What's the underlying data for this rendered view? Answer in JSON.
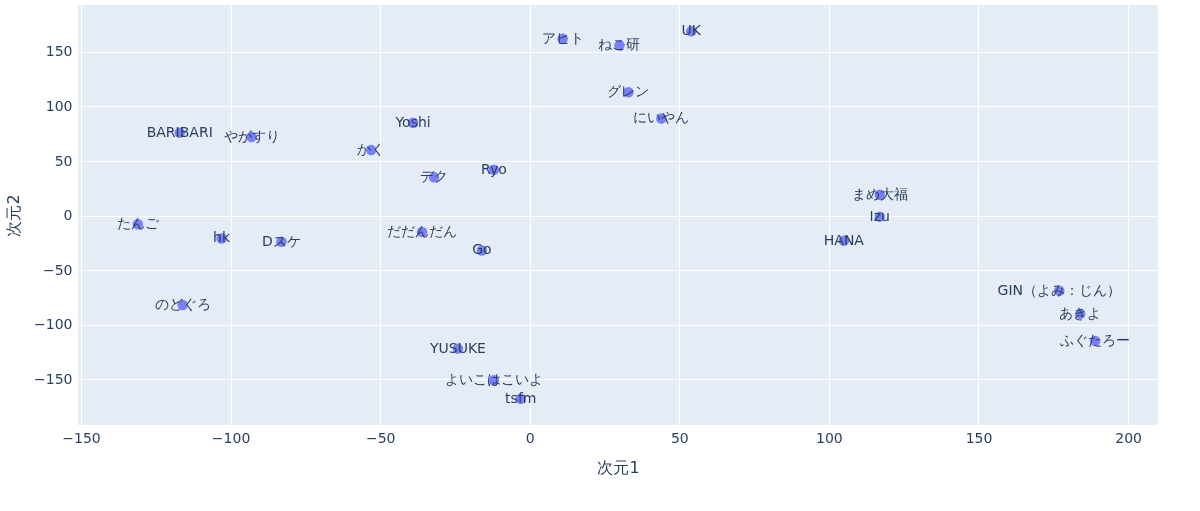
{
  "chart_data": {
    "type": "scatter",
    "xlabel": "次元1",
    "ylabel": "次元2",
    "xlim": [
      -151,
      210
    ],
    "ylim": [
      -192,
      193
    ],
    "xticks": [
      -150,
      -100,
      -50,
      0,
      50,
      100,
      150,
      200
    ],
    "yticks": [
      -150,
      -100,
      -50,
      0,
      50,
      100,
      150
    ],
    "grid": true,
    "marker": "circle",
    "series": [
      {
        "color": "#636efa",
        "x": [
          11,
          -117,
          -93,
          -53,
          -39,
          -32,
          -12,
          -131,
          -36,
          -103,
          -83,
          -16,
          -116,
          -24,
          -12,
          -3,
          54,
          30,
          33,
          44,
          117,
          117,
          105,
          177,
          184,
          189
        ],
        "values": [
          162,
          76,
          72,
          60,
          85,
          35,
          42,
          -8,
          -15,
          -21,
          -24,
          -32,
          -82,
          -122,
          -151,
          -168,
          169,
          156,
          113,
          89,
          19,
          -1,
          -23,
          -69,
          -90,
          -115
        ],
        "value_labels": [
          "アヒト",
          "BARIBARI",
          "やがすり",
          "かく",
          "Yoshi",
          "デク",
          "Ryo",
          "たんご",
          "だだんだん",
          "hk",
          "Dスケ",
          "Go",
          "のどぐろ",
          "YUSUKE",
          "よいこはこいよ",
          "tsfm",
          "UK",
          "ねこ研",
          "グレン",
          "にいやん",
          "まめ大福",
          "Izu",
          "HANA",
          "GIN（よみ：じん）",
          "あきよ",
          "ふぐたろー"
        ]
      }
    ]
  }
}
